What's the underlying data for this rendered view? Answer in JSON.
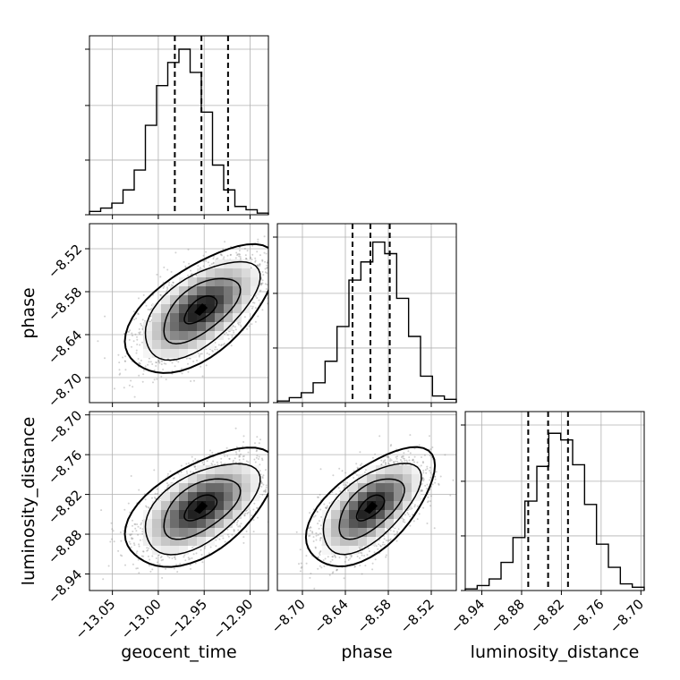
{
  "chart_data": {
    "type": "corner",
    "parameters": [
      {
        "name": "geocent_time",
        "label": "geocent_time",
        "range": [
          -13.075,
          -12.88
        ],
        "ticks": [
          -13.05,
          -13.0,
          -12.95,
          -12.9
        ],
        "tick_labels": [
          "−13.05",
          "−13.00",
          "−12.95",
          "−12.90"
        ],
        "mean": -12.954,
        "sd": 0.032,
        "quantiles": [
          -12.982,
          -12.953,
          -12.924
        ],
        "histogram": [
          0.02,
          0.04,
          0.07,
          0.15,
          0.27,
          0.54,
          0.78,
          0.92,
          1.0,
          0.86,
          0.62,
          0.3,
          0.15,
          0.05,
          0.03,
          0.01
        ]
      },
      {
        "name": "phase",
        "label": "phase",
        "range": [
          -8.735,
          -8.485
        ],
        "ticks": [
          -8.7,
          -8.64,
          -8.58,
          -8.52
        ],
        "tick_labels": [
          "−8.70",
          "−8.64",
          "−8.58",
          "−8.52"
        ],
        "mean": -8.605,
        "sd": 0.035,
        "quantiles": [
          -8.63,
          -8.605,
          -8.578
        ],
        "histogram": [
          0.01,
          0.03,
          0.06,
          0.12,
          0.25,
          0.46,
          0.74,
          0.85,
          0.97,
          0.9,
          0.63,
          0.4,
          0.16,
          0.04,
          0.02
        ]
      },
      {
        "name": "luminosity_distance",
        "label": "luminosity_distance",
        "range": [
          -8.965,
          -8.695
        ],
        "ticks": [
          -8.94,
          -8.88,
          -8.82,
          -8.76,
          -8.7
        ],
        "tick_labels": [
          "−8.94",
          "−8.88",
          "−8.82",
          "−8.76",
          "−8.70"
        ],
        "mean": -8.84,
        "sd": 0.035,
        "quantiles": [
          -8.87,
          -8.84,
          -8.81
        ],
        "histogram": [
          0.01,
          0.03,
          0.07,
          0.17,
          0.32,
          0.54,
          0.75,
          0.95,
          0.91,
          0.76,
          0.52,
          0.28,
          0.14,
          0.04,
          0.02
        ]
      }
    ],
    "correlations": {
      "phase|geocent_time": 0.6,
      "luminosity_distance|geocent_time": 0.55,
      "luminosity_distance|phase": 0.6
    },
    "hist_yticks": [
      0.0,
      0.33,
      0.66,
      1.0
    ],
    "grid": true,
    "colors": {
      "line": "#000000",
      "grid": "#b0b0b0",
      "scatter": "#7a7a7a",
      "density_dark": "#000000"
    }
  }
}
